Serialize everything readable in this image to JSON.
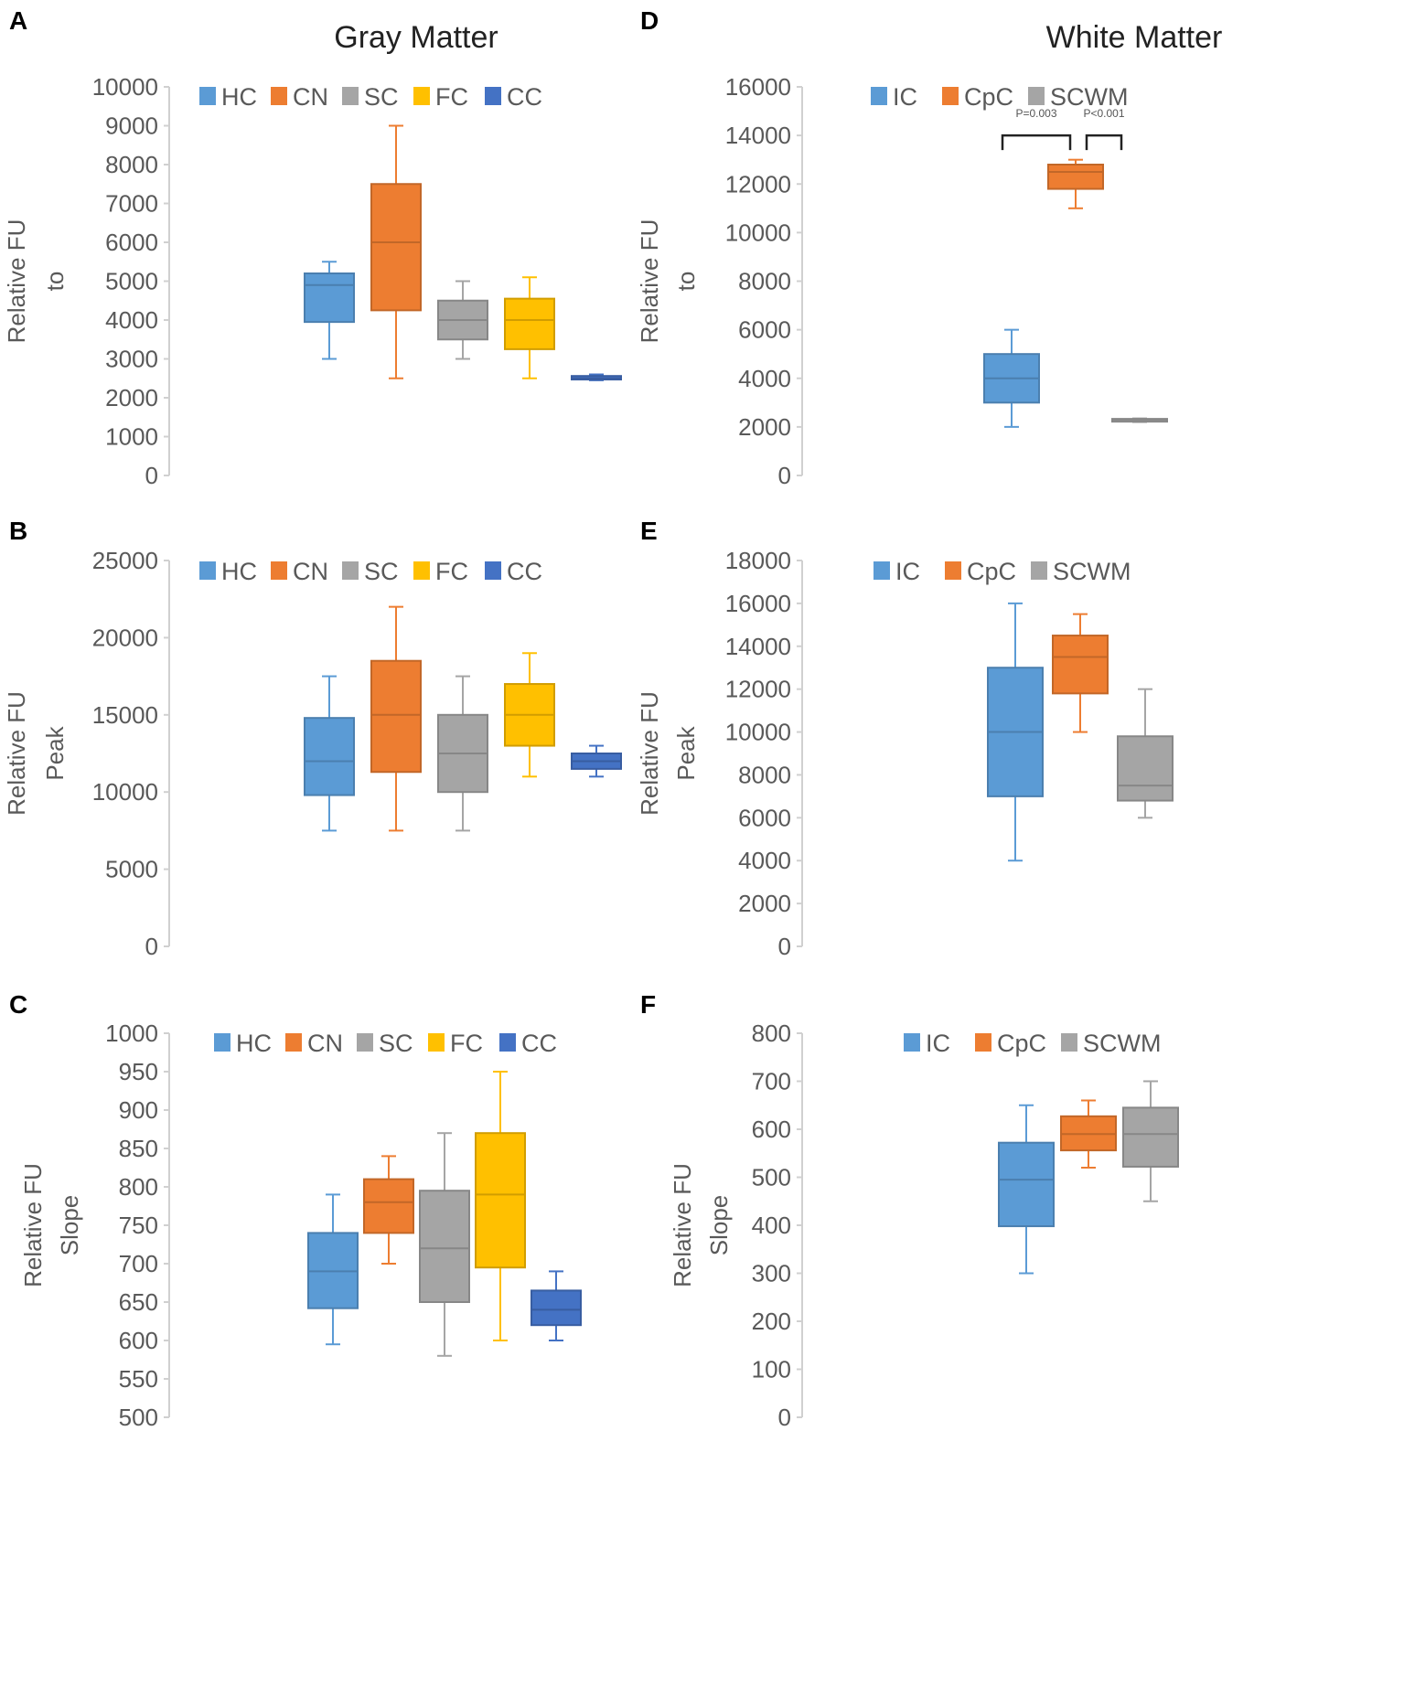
{
  "column_titles": {
    "gray": "Gray Matter",
    "white": "White Matter"
  },
  "colors": {
    "HC": "#5b9bd5",
    "CN": "#ed7d31",
    "SC": "#a5a5a5",
    "FC": "#ffc000",
    "CC": "#4472c4",
    "IC": "#5b9bd5",
    "CpC": "#ed7d31",
    "SCWM": "#a5a5a5",
    "axis": "#d0d0d0",
    "tick_text": "#595959"
  },
  "chart_data": [
    {
      "panel": "A",
      "type": "box",
      "column": "gray",
      "ylabel": [
        "Relative FU",
        "to"
      ],
      "ylim": [
        0,
        10000
      ],
      "yticks": [
        0,
        1000,
        2000,
        3000,
        4000,
        5000,
        6000,
        7000,
        8000,
        9000,
        10000
      ],
      "legend": [
        "HC",
        "CN",
        "SC",
        "FC",
        "CC"
      ],
      "series": [
        {
          "name": "HC",
          "min": 3000,
          "q1": 3950,
          "median": 4900,
          "q3": 5200,
          "max": 5500
        },
        {
          "name": "CN",
          "min": 2500,
          "q1": 4250,
          "median": 6000,
          "q3": 7500,
          "max": 9000
        },
        {
          "name": "SC",
          "min": 3000,
          "q1": 3500,
          "median": 4000,
          "q3": 4500,
          "max": 5000
        },
        {
          "name": "FC",
          "min": 2500,
          "q1": 3250,
          "median": 4000,
          "q3": 4550,
          "max": 5100
        },
        {
          "name": "CC",
          "min": 2450,
          "q1": 2470,
          "median": 2500,
          "q3": 2560,
          "max": 2600
        }
      ]
    },
    {
      "panel": "B",
      "type": "box",
      "column": "gray",
      "ylabel": [
        "Relative FU",
        "Peak"
      ],
      "ylim": [
        0,
        25000
      ],
      "yticks": [
        0,
        5000,
        10000,
        15000,
        20000,
        25000
      ],
      "legend": [
        "HC",
        "CN",
        "SC",
        "FC",
        "CC"
      ],
      "series": [
        {
          "name": "HC",
          "min": 7500,
          "q1": 9800,
          "median": 12000,
          "q3": 14800,
          "max": 17500
        },
        {
          "name": "CN",
          "min": 7500,
          "q1": 11300,
          "median": 15000,
          "q3": 18500,
          "max": 22000
        },
        {
          "name": "SC",
          "min": 7500,
          "q1": 10000,
          "median": 12500,
          "q3": 15000,
          "max": 17500
        },
        {
          "name": "FC",
          "min": 11000,
          "q1": 13000,
          "median": 15000,
          "q3": 17000,
          "max": 19000
        },
        {
          "name": "CC",
          "min": 11000,
          "q1": 11500,
          "median": 12000,
          "q3": 12500,
          "max": 13000
        }
      ]
    },
    {
      "panel": "C",
      "type": "box",
      "column": "gray",
      "ylabel": [
        "Relative FU",
        "Slope"
      ],
      "ylim": [
        500,
        1000
      ],
      "yticks": [
        500,
        550,
        600,
        650,
        700,
        750,
        800,
        850,
        900,
        950,
        1000
      ],
      "legend": [
        "HC",
        "CN",
        "SC",
        "FC",
        "CC"
      ],
      "series": [
        {
          "name": "HC",
          "min": 595,
          "q1": 642,
          "median": 690,
          "q3": 740,
          "max": 790
        },
        {
          "name": "CN",
          "min": 700,
          "q1": 740,
          "median": 780,
          "q3": 810,
          "max": 840
        },
        {
          "name": "SC",
          "min": 580,
          "q1": 650,
          "median": 720,
          "q3": 795,
          "max": 870
        },
        {
          "name": "FC",
          "min": 600,
          "q1": 695,
          "median": 790,
          "q3": 870,
          "max": 950
        },
        {
          "name": "CC",
          "min": 600,
          "q1": 620,
          "median": 640,
          "q3": 665,
          "max": 690
        }
      ]
    },
    {
      "panel": "D",
      "type": "box",
      "column": "white",
      "ylabel": [
        "Relative FU",
        "to"
      ],
      "ylim": [
        0,
        16000
      ],
      "yticks": [
        0,
        2000,
        4000,
        6000,
        8000,
        10000,
        12000,
        14000,
        16000
      ],
      "legend": [
        "IC",
        "CpC",
        "SCWM"
      ],
      "series": [
        {
          "name": "IC",
          "min": 2000,
          "q1": 3000,
          "median": 4000,
          "q3": 5000,
          "max": 6000
        },
        {
          "name": "CpC",
          "min": 11000,
          "q1": 11800,
          "median": 12500,
          "q3": 12800,
          "max": 13000
        },
        {
          "name": "SCWM",
          "min": 2200,
          "q1": 2250,
          "median": 2300,
          "q3": 2330,
          "max": 2350
        }
      ],
      "annotations": [
        {
          "text": "P=0.003",
          "from": "IC",
          "to": "CpC"
        },
        {
          "text": "P<0.001",
          "from": "CpC",
          "to": "SCWM"
        }
      ]
    },
    {
      "panel": "E",
      "type": "box",
      "column": "white",
      "ylabel": [
        "Relative FU",
        "Peak"
      ],
      "ylim": [
        0,
        18000
      ],
      "yticks": [
        0,
        2000,
        4000,
        6000,
        8000,
        10000,
        12000,
        14000,
        16000,
        18000
      ],
      "legend": [
        "IC",
        "CpC",
        "SCWM"
      ],
      "series": [
        {
          "name": "IC",
          "min": 4000,
          "q1": 7000,
          "median": 10000,
          "q3": 13000,
          "max": 16000
        },
        {
          "name": "CpC",
          "min": 10000,
          "q1": 11800,
          "median": 13500,
          "q3": 14500,
          "max": 15500
        },
        {
          "name": "SCWM",
          "min": 6000,
          "q1": 6800,
          "median": 7500,
          "q3": 9800,
          "max": 12000
        }
      ]
    },
    {
      "panel": "F",
      "type": "box",
      "column": "white",
      "ylabel": [
        "Relative FU",
        "Slope"
      ],
      "ylim": [
        0,
        800
      ],
      "yticks": [
        0,
        100,
        200,
        300,
        400,
        500,
        600,
        700,
        800
      ],
      "legend": [
        "IC",
        "CpC",
        "SCWM"
      ],
      "series": [
        {
          "name": "IC",
          "min": 300,
          "q1": 398,
          "median": 495,
          "q3": 572,
          "max": 650
        },
        {
          "name": "CpC",
          "min": 520,
          "q1": 556,
          "median": 590,
          "q3": 627,
          "max": 660
        },
        {
          "name": "SCWM",
          "min": 450,
          "q1": 522,
          "median": 590,
          "q3": 645,
          "max": 700
        }
      ]
    }
  ]
}
